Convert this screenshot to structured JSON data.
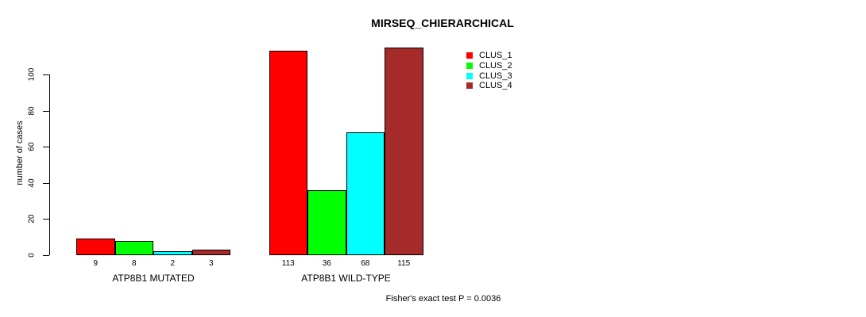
{
  "chart_data": {
    "type": "bar",
    "title": "MIRSEQ_CHIERARCHICAL",
    "ylabel": "number of cases",
    "xlabel": "",
    "categories": [
      "ATP8B1 MUTATED",
      "ATP8B1 WILD-TYPE"
    ],
    "series": [
      {
        "name": "CLUS_1",
        "color": "#ff0000",
        "values": [
          9,
          113
        ]
      },
      {
        "name": "CLUS_2",
        "color": "#00ff00",
        "values": [
          8,
          36
        ]
      },
      {
        "name": "CLUS_3",
        "color": "#00ffff",
        "values": [
          2,
          68
        ]
      },
      {
        "name": "CLUS_4",
        "color": "#a52a2a",
        "values": [
          3,
          115
        ]
      }
    ],
    "yticks": [
      0,
      20,
      40,
      60,
      80,
      100
    ],
    "ylim": [
      0,
      116
    ],
    "grid": false,
    "bar_value_labels": true,
    "legend_position": "top-right",
    "annotation": "Fisher's exact test P = 0.0036"
  }
}
